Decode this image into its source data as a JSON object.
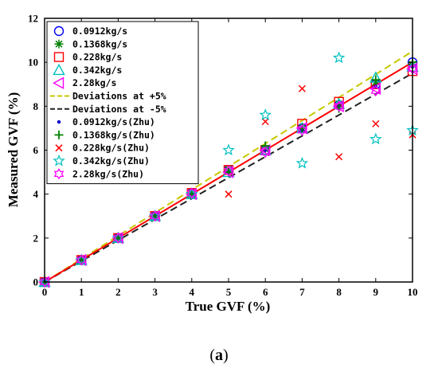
{
  "chart_data": {
    "type": "scatter",
    "xlabel": "True GVF (%)",
    "ylabel": "Measured GVF (%)",
    "xlim": [
      0,
      10
    ],
    "ylim": [
      0,
      12
    ],
    "x_ticks": [
      0,
      1,
      2,
      3,
      4,
      5,
      6,
      7,
      8,
      9,
      10
    ],
    "y_ticks": [
      0,
      2,
      4,
      6,
      8,
      10,
      12
    ],
    "grid": false,
    "legend_position": "top-left",
    "caption_open": "(",
    "caption_letter": "a",
    "caption_close": ")",
    "lines": [
      {
        "name": "Deviations at +5%",
        "color": "#c8c800",
        "dash": "dashed",
        "x": [
          0,
          10
        ],
        "y": [
          0,
          10.5
        ]
      },
      {
        "name": "Deviations at -5%",
        "color": "#222222",
        "dash": "dashed",
        "x": [
          0,
          10
        ],
        "y": [
          0,
          9.5
        ]
      },
      {
        "name": "",
        "color": "#ff0000",
        "dash": "solid",
        "x": [
          0,
          10
        ],
        "y": [
          0,
          10
        ]
      }
    ],
    "series": [
      {
        "name": "0.0912kg/s",
        "marker": "circle",
        "color": "#0000ff",
        "x": [
          0,
          1,
          2,
          3,
          4,
          5,
          6,
          7,
          8,
          9,
          10
        ],
        "y": [
          0,
          1,
          2,
          3,
          4.05,
          5.1,
          6.0,
          7.0,
          8.05,
          9.0,
          10.0
        ]
      },
      {
        "name": "0.1368kg/s",
        "marker": "asterisk",
        "color": "#008000",
        "x": [
          0,
          1,
          2,
          3,
          4,
          5,
          6,
          7,
          8,
          9,
          10
        ],
        "y": [
          0,
          1,
          2,
          3,
          4.05,
          5.1,
          6.05,
          7.0,
          8.1,
          9.1,
          9.9
        ]
      },
      {
        "name": "0.228kg/s",
        "marker": "square",
        "color": "#ff0000",
        "x": [
          0,
          1,
          2,
          3,
          4,
          5,
          6,
          7,
          8,
          9,
          10
        ],
        "y": [
          0,
          1,
          2,
          3,
          4.05,
          5.1,
          6.0,
          7.2,
          8.2,
          9.0,
          9.6
        ]
      },
      {
        "name": "0.342kg/s",
        "marker": "triangle-up",
        "color": "#00bfbf",
        "x": [
          0,
          1,
          2,
          3,
          4,
          5,
          6,
          7,
          8,
          9,
          10
        ],
        "y": [
          0,
          1,
          2,
          3,
          4.0,
          5.0,
          6.0,
          7.0,
          8.1,
          9.3,
          9.8
        ]
      },
      {
        "name": "2.28kg/s",
        "marker": "triangle-left",
        "color": "#ff00ff",
        "x": [
          0,
          1,
          2,
          3,
          4,
          5,
          6,
          7,
          8,
          9,
          10
        ],
        "y": [
          0,
          1,
          2,
          3,
          4.0,
          5.0,
          6.0,
          7.0,
          8.0,
          8.8,
          9.7
        ]
      },
      {
        "name": "0.0912kg/s(Zhu)",
        "marker": "dot",
        "color": "#0000cc",
        "x": [
          0,
          1,
          2,
          3,
          4,
          5,
          6,
          7,
          8,
          9,
          10
        ],
        "y": [
          0,
          1,
          2,
          3,
          4.0,
          5.0,
          6.0,
          6.9,
          8.0,
          8.9,
          9.8
        ]
      },
      {
        "name": "0.1368kg/s(Zhu)",
        "marker": "plus",
        "color": "#008000",
        "x": [
          0,
          1,
          2,
          3,
          4,
          5,
          6,
          7,
          8,
          9,
          10
        ],
        "y": [
          0,
          1,
          2,
          3,
          4.0,
          5.0,
          6.2,
          7.0,
          7.9,
          9.2,
          10.0
        ]
      },
      {
        "name": "0.228kg/s(Zhu)",
        "marker": "x",
        "color": "#ff0000",
        "x": [
          5,
          6,
          7,
          8,
          9,
          10
        ],
        "y": [
          4.0,
          7.3,
          8.8,
          5.7,
          7.2,
          6.7
        ]
      },
      {
        "name": "0.342kg/s(Zhu)",
        "marker": "star",
        "color": "#00c0c0",
        "x": [
          0,
          1,
          2,
          3,
          4,
          5,
          6,
          7,
          8,
          9,
          10
        ],
        "y": [
          0,
          1,
          2,
          3,
          4.0,
          6.0,
          7.6,
          5.4,
          10.2,
          6.5,
          6.9
        ]
      },
      {
        "name": "2.28kg/s(Zhu)",
        "marker": "hexagram",
        "color": "#ff00ff",
        "x": [
          0,
          1,
          2,
          3,
          4,
          5,
          6,
          7,
          8,
          9,
          10
        ],
        "y": [
          0,
          1,
          2,
          3,
          4.05,
          5.05,
          5.9,
          6.9,
          8.0,
          8.7,
          9.7
        ]
      }
    ]
  }
}
